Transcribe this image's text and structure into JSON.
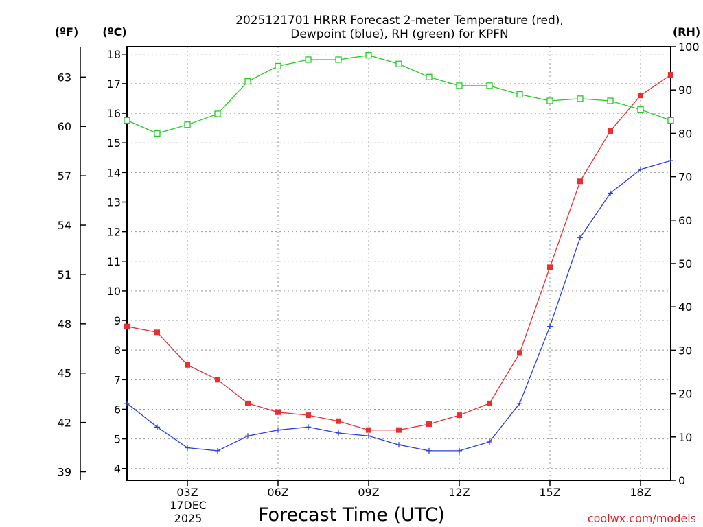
{
  "chart_data": {
    "type": "line",
    "title": "2025121701 HRRR Forecast 2-meter Temperature (red),",
    "subtitle": "Dewpoint (blue), RH (green) for KPFN",
    "xlabel": "Forecast Time (UTC)",
    "date_label": [
      "17DEC",
      "2025"
    ],
    "credit": "coolwx.com/models",
    "x_hours": [
      1,
      2,
      3,
      4,
      5,
      6,
      7,
      8,
      9,
      10,
      11,
      12,
      13,
      14,
      15,
      16,
      17,
      18,
      19
    ],
    "xlim": [
      1,
      19
    ],
    "x_ticks": [
      {
        "hour": 3,
        "label": "03Z"
      },
      {
        "hour": 6,
        "label": "06Z"
      },
      {
        "hour": 9,
        "label": "09Z"
      },
      {
        "hour": 12,
        "label": "12Z"
      },
      {
        "hour": 15,
        "label": "15Z"
      },
      {
        "hour": 18,
        "label": "18Z"
      }
    ],
    "left_axis_celsius": {
      "label": "(ºC)",
      "ylim": [
        3.6,
        18.25
      ],
      "ticks": [
        4,
        5,
        6,
        7,
        8,
        9,
        10,
        11,
        12,
        13,
        14,
        15,
        16,
        17,
        18
      ]
    },
    "left_axis_fahrenheit": {
      "label": "(ºF)",
      "ticks": [
        39,
        42,
        45,
        48,
        51,
        54,
        57,
        60,
        63
      ]
    },
    "right_axis_rh": {
      "label": "(RH)",
      "ylim": [
        0,
        100
      ],
      "ticks": [
        0,
        10,
        20,
        30,
        40,
        50,
        60,
        70,
        80,
        90,
        100
      ]
    },
    "series": [
      {
        "name": "2-meter Temperature",
        "axis": "celsius",
        "color": "#e83030",
        "marker": "filled-square",
        "values": [
          8.8,
          8.6,
          7.5,
          7.0,
          6.2,
          5.9,
          5.8,
          5.6,
          5.3,
          5.3,
          5.5,
          5.8,
          6.2,
          7.9,
          10.8,
          13.7,
          15.4,
          16.6,
          17.3
        ]
      },
      {
        "name": "Dewpoint",
        "axis": "celsius",
        "color": "#2a3fe0",
        "marker": "plus",
        "values": [
          6.2,
          5.4,
          4.7,
          4.6,
          5.1,
          5.3,
          5.4,
          5.2,
          5.1,
          4.8,
          4.6,
          4.6,
          4.9,
          6.2,
          8.8,
          11.8,
          13.3,
          14.1,
          14.4
        ]
      },
      {
        "name": "RH",
        "axis": "rh",
        "color": "#22cc22",
        "marker": "open-square",
        "values": [
          83,
          80,
          82,
          84.5,
          92,
          95.5,
          97,
          97,
          98,
          96,
          93,
          91,
          91,
          89,
          87.5,
          88,
          87.5,
          85.5,
          83
        ]
      }
    ]
  }
}
